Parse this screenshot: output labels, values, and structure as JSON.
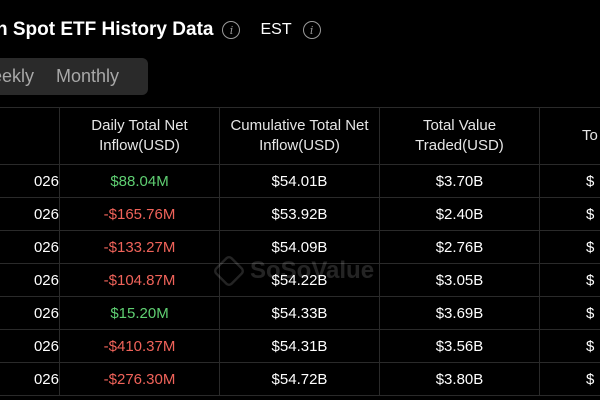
{
  "header": {
    "title": "n Spot ETF History Data",
    "timezone": "EST"
  },
  "tabs": {
    "weekly": "eekly",
    "monthly": "Monthly"
  },
  "table": {
    "columns": [
      "",
      "Daily Total Net Inflow(USD)",
      "Cumulative Total Net Inflow(USD)",
      "Total Value Traded(USD)",
      "To Ass"
    ],
    "rows": [
      {
        "date": "026",
        "daily": "$88.04M",
        "cumulative": "$54.01B",
        "traded": "$3.70B",
        "assets": "$"
      },
      {
        "date": "026",
        "daily": "-$165.76M",
        "cumulative": "$53.92B",
        "traded": "$2.40B",
        "assets": "$"
      },
      {
        "date": "026",
        "daily": "-$133.27M",
        "cumulative": "$54.09B",
        "traded": "$2.76B",
        "assets": "$"
      },
      {
        "date": "026",
        "daily": "-$104.87M",
        "cumulative": "$54.22B",
        "traded": "$3.05B",
        "assets": "$"
      },
      {
        "date": "026",
        "daily": "$15.20M",
        "cumulative": "$54.33B",
        "traded": "$3.69B",
        "assets": "$"
      },
      {
        "date": "026",
        "daily": "-$410.37M",
        "cumulative": "$54.31B",
        "traded": "$3.56B",
        "assets": "$"
      },
      {
        "date": "026",
        "daily": "-$276.30M",
        "cumulative": "$54.72B",
        "traded": "$3.80B",
        "assets": "$"
      }
    ]
  },
  "watermark": "SoSoValue",
  "colors": {
    "positive": "#5fcf72",
    "negative": "#f0635a",
    "background": "#000000"
  }
}
